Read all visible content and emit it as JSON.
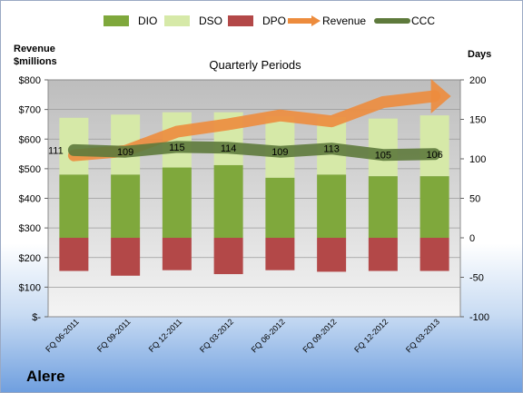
{
  "company": "Alere",
  "chart_data": {
    "type": "bar",
    "title": "Quarterly Periods",
    "categories": [
      "FQ 06-2011",
      "FQ 09-2011",
      "FQ 12-2011",
      "FQ 03-2012",
      "FQ 06-2012",
      "FQ 09-2012",
      "FQ 12-2012",
      "FQ 03-2013"
    ],
    "left_axis": {
      "label_line1": "Revenue",
      "label_line2": "$millions",
      "range": [
        0,
        800
      ],
      "ticks": [
        "$-",
        "$100",
        "$200",
        "$300",
        "$400",
        "$500",
        "$600",
        "$700",
        "$800"
      ]
    },
    "right_axis": {
      "label": "Days",
      "range": [
        -100,
        200
      ],
      "ticks": [
        "-100",
        "-50",
        "0",
        "50",
        "100",
        "150",
        "200"
      ]
    },
    "legend": [
      "DIO",
      "DSO",
      "DPO",
      "Revenue",
      "CCC"
    ],
    "legend_position": "top",
    "series": [
      {
        "name": "DIO",
        "axis": "right",
        "values": [
          80,
          80,
          89,
          92,
          76,
          80,
          78,
          78
        ],
        "color": "#7fa83c"
      },
      {
        "name": "DSO",
        "axis": "right",
        "values": [
          72,
          76,
          70,
          67,
          78,
          73,
          73,
          77
        ],
        "color": "#d6e9a8"
      },
      {
        "name": "DPO",
        "axis": "right",
        "values": [
          -42,
          -48,
          -41,
          -46,
          -41,
          -43,
          -42,
          -42
        ],
        "color": "#b34848"
      },
      {
        "name": "Revenue",
        "axis": "left",
        "values": [
          545,
          560,
          625,
          650,
          680,
          660,
          725,
          745
        ],
        "color": "#ed8c3d"
      },
      {
        "name": "CCC",
        "axis": "right",
        "values": [
          111,
          109,
          115,
          114,
          109,
          113,
          105,
          106
        ],
        "color": "#5e7a3c"
      }
    ],
    "ccc_labels": [
      "111",
      "109",
      "115",
      "114",
      "109",
      "113",
      "105",
      "106"
    ]
  }
}
